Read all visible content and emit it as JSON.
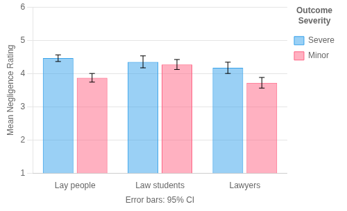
{
  "chart_data": {
    "type": "bar",
    "categories": [
      "Lay people",
      "Law students",
      "Lawyers"
    ],
    "series": [
      {
        "name": "Severe",
        "values": [
          4.46,
          4.35,
          4.17
        ],
        "errors": [
          0.1,
          0.18,
          0.17
        ]
      },
      {
        "name": "Minor",
        "values": [
          3.87,
          4.27,
          3.72
        ],
        "errors": [
          0.13,
          0.15,
          0.16
        ]
      }
    ],
    "ylabel": "Mean Negligence Rating",
    "xlabel": "Error bars: 95% CI",
    "ylim": [
      1,
      6
    ],
    "yticks": [
      1,
      2,
      3,
      4,
      5,
      6
    ],
    "grid": true,
    "legend": "upper right",
    "legend_title": "Outcome\nSeverity"
  }
}
